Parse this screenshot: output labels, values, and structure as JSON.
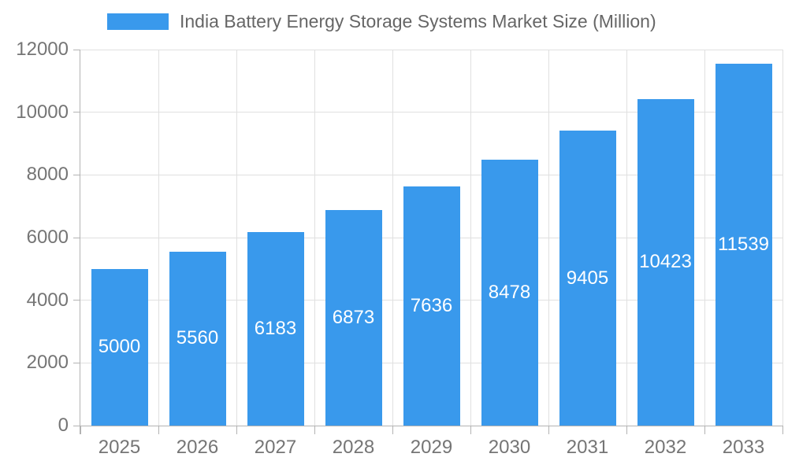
{
  "chart_data": {
    "type": "bar",
    "title": "India Battery Energy Storage Systems Market Size (Million)",
    "categories": [
      "2025",
      "2026",
      "2027",
      "2028",
      "2029",
      "2030",
      "2031",
      "2032",
      "2033"
    ],
    "values": [
      5000,
      5560,
      6183,
      6873,
      7636,
      8478,
      9405,
      10423,
      11539
    ],
    "xlabel": "",
    "ylabel": "",
    "ylim": [
      0,
      12000
    ],
    "yticks": [
      0,
      2000,
      4000,
      6000,
      8000,
      10000,
      12000
    ],
    "grid": true,
    "legend_position": "top",
    "value_label_position": "inside-center",
    "bar_color": "#3999ec"
  },
  "legend": {
    "label": "India Battery Energy Storage Systems Market Size (Million)"
  },
  "colors": {
    "bar": "#3999ec",
    "legend_text": "#666666",
    "tick_text": "#757575",
    "gridline": "#e0e0e0",
    "axis": "#b3b3b3",
    "value_label_text": "#ffffff",
    "background": "#ffffff"
  }
}
